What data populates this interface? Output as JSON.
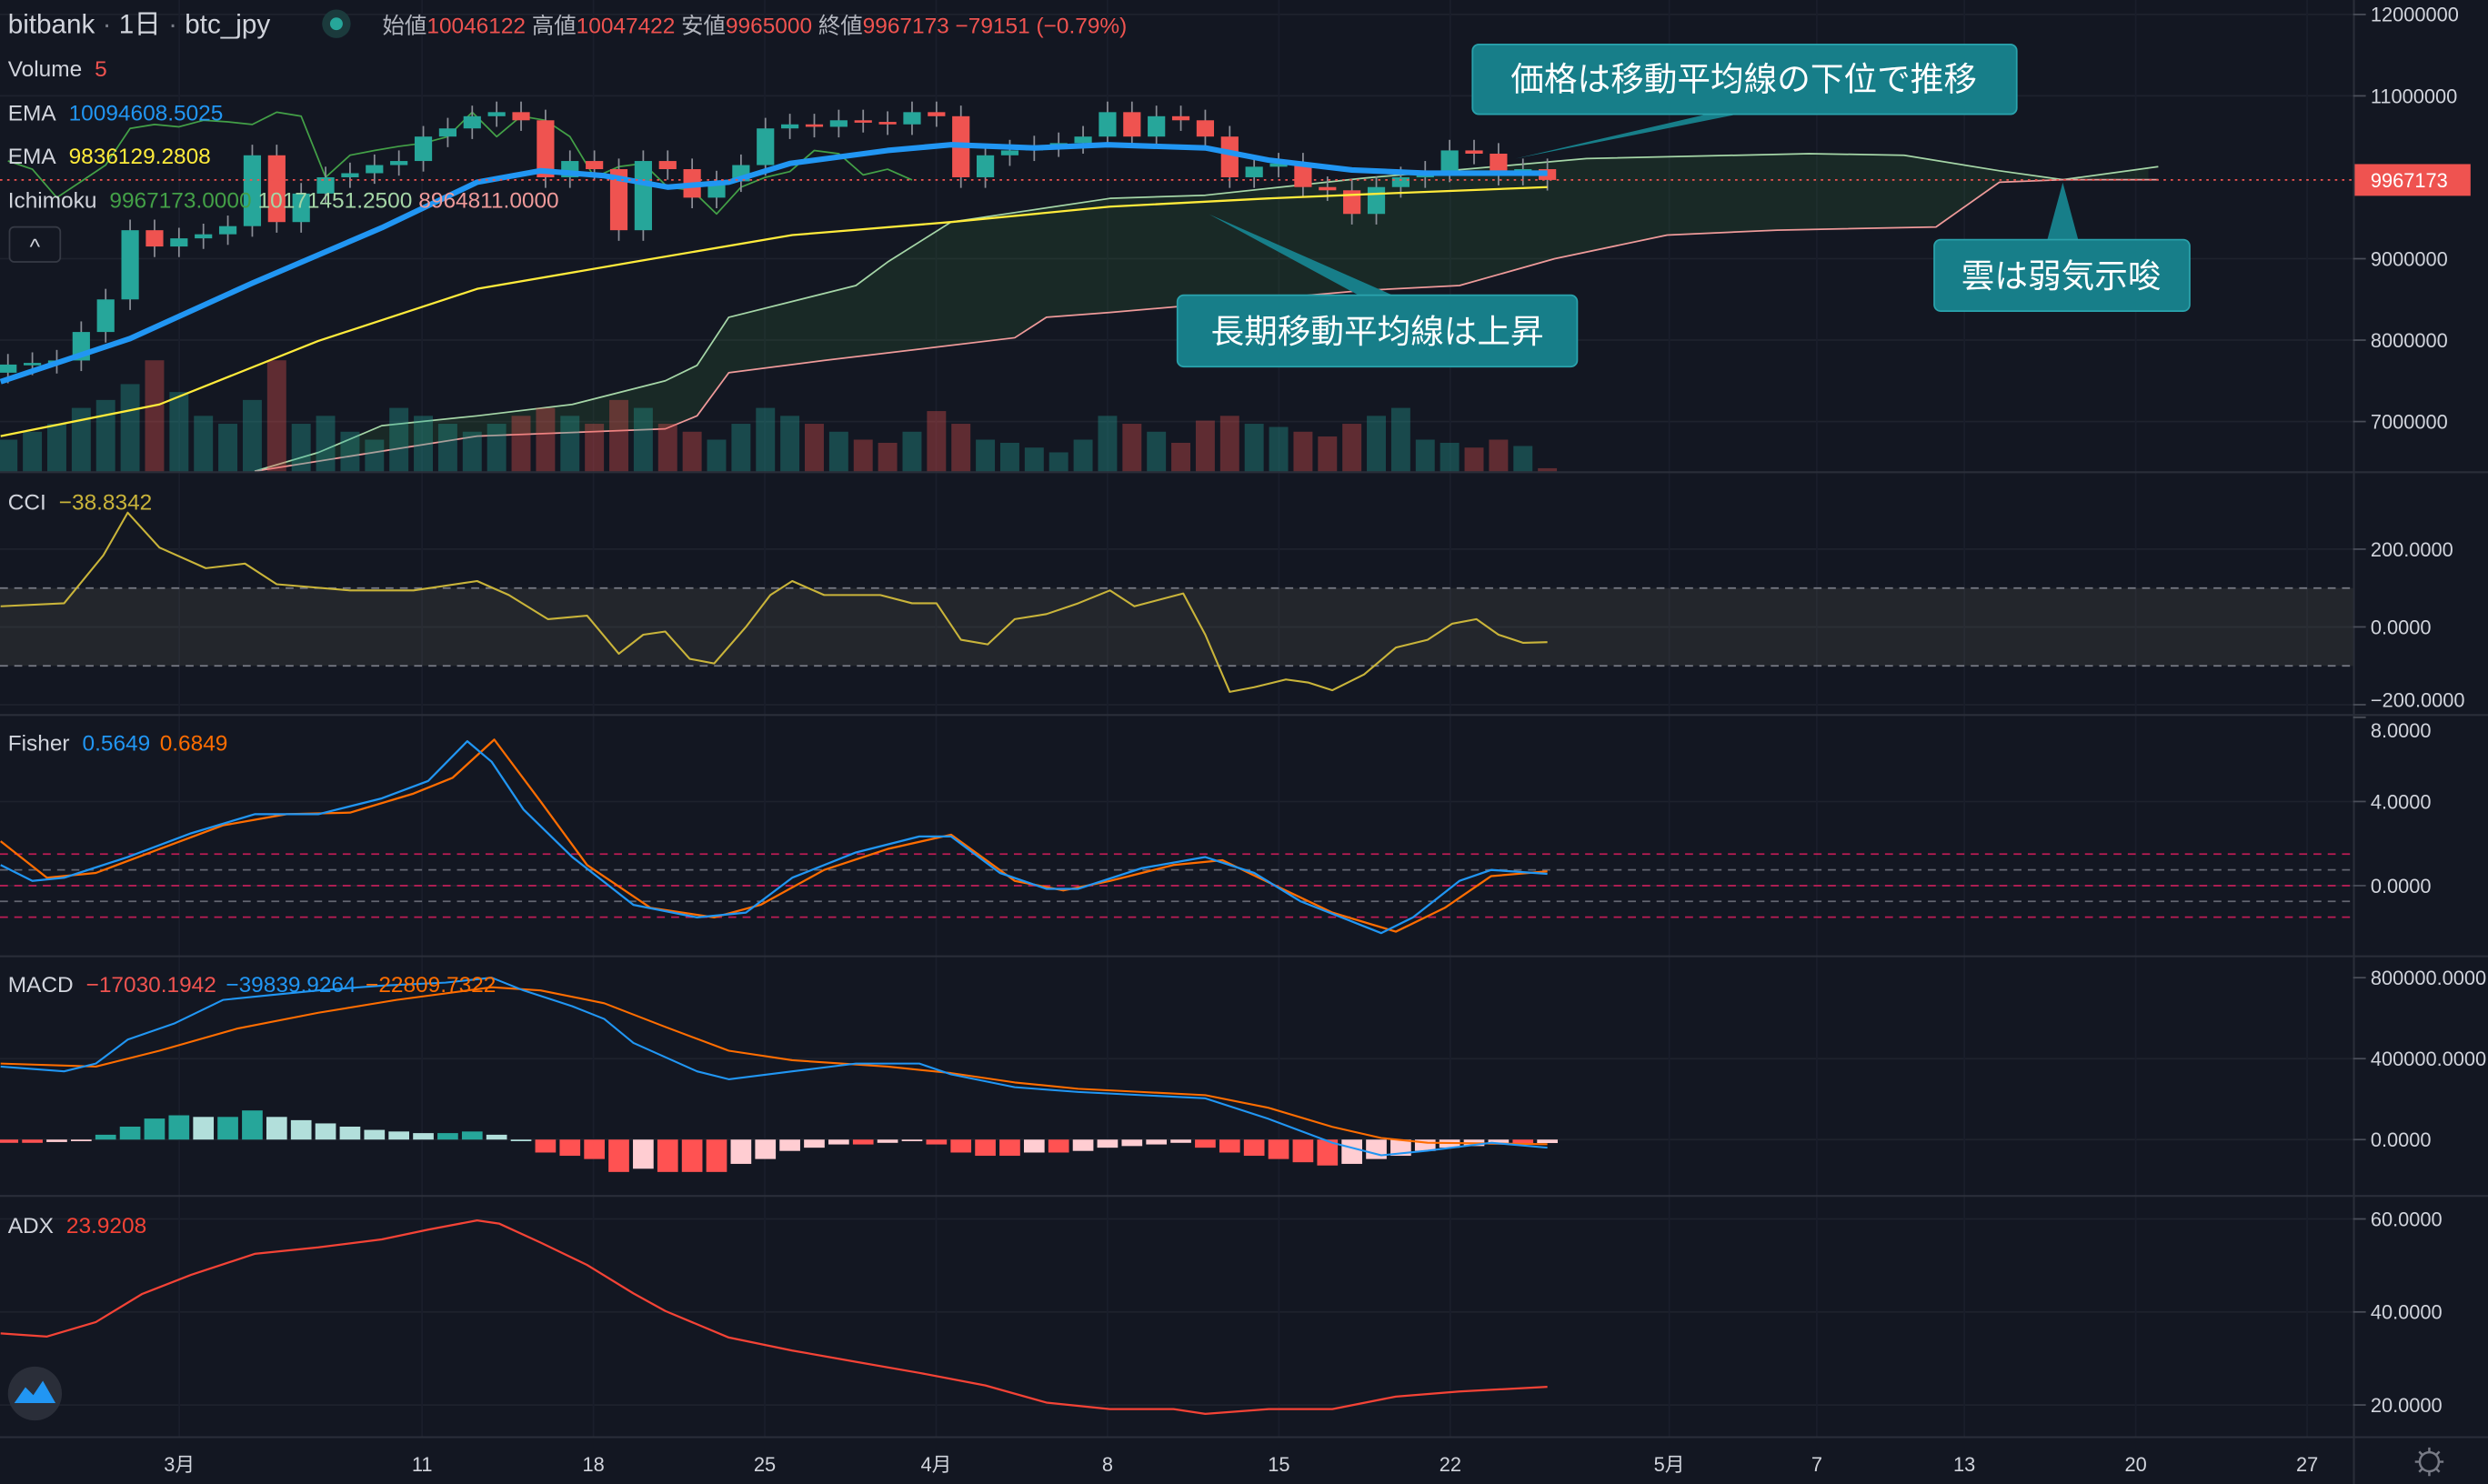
{
  "header": {
    "exchange": "bitbank",
    "interval": "1日",
    "symbol": "btc_jpy",
    "ohlc": [
      {
        "label": "始値",
        "value": "10046122"
      },
      {
        "label": "高値",
        "value": "10047422"
      },
      {
        "label": "安値",
        "value": "9965000"
      },
      {
        "label": "終値",
        "value": "9967173"
      }
    ],
    "change": "−79151 (−0.79%)"
  },
  "legends": {
    "volume": {
      "label": "Volume",
      "value": "5"
    },
    "ema_fast": {
      "label": "EMA",
      "value": "10094608.5025"
    },
    "ema_slow": {
      "label": "EMA",
      "value": "9836129.2808"
    },
    "ichimoku": {
      "label": "Ichimoku",
      "v1": "9967173.0000",
      "v2": "10171451.2500",
      "v3": "8964811.0000"
    },
    "cci": {
      "label": "CCI",
      "value": "−38.8342"
    },
    "fisher": {
      "label": "Fisher",
      "v1": "0.5649",
      "v2": "0.6849"
    },
    "macd": {
      "label": "MACD",
      "v1": "−17030.1942",
      "v2": "−39839.9264",
      "v3": "−22809.7322"
    },
    "adx": {
      "label": "ADX",
      "value": "23.9208"
    }
  },
  "collapse_button": "^",
  "annotations": [
    {
      "text": "価格は移動平均線の下位で推移"
    },
    {
      "text": "長期移動平均線は上昇"
    },
    {
      "text": "雲は弱気示唆"
    }
  ],
  "price_axis": {
    "main": [
      "12000000",
      "11000000",
      "9000000",
      "8000000",
      "7000000"
    ],
    "last_price": "9967173",
    "cci": [
      "200.0000",
      "0.0000",
      "−200.0000"
    ],
    "fisher": [
      "8.0000",
      "4.0000",
      "0.0000"
    ],
    "macd": [
      "800000.0000",
      "400000.0000",
      "0.0000"
    ],
    "adx": [
      "60.0000",
      "40.0000",
      "20.0000"
    ]
  },
  "time_axis": [
    "3月",
    "11",
    "18",
    "25",
    "4月",
    "8",
    "15",
    "22",
    "5月",
    "7",
    "13",
    "20",
    "27"
  ],
  "colors": {
    "background": "#131722",
    "up": "#26a69a",
    "down": "#ef5350",
    "ema_fast": "#2196f3",
    "ema_slow": "#ffeb3b",
    "chikou": "#43a047",
    "span_a": "#a5d6a7",
    "span_b": "#ef9a9a",
    "cci": "#c9b43a",
    "fisher": "#2196f3",
    "fisher_trigger": "#ff6d00",
    "adx": "#f44336",
    "annotation": "#177e89"
  },
  "chart_data": {
    "type": "candlestick",
    "title": "bitbank 1日 btc_jpy",
    "x_unit": "day index (0 = 2/23)",
    "price_unit": "million JPY",
    "ylim": [
      6.4,
      12.0
    ],
    "first_open": 7.6,
    "closes": [
      7.7,
      7.72,
      7.75,
      8.1,
      8.5,
      9.35,
      9.15,
      9.25,
      9.3,
      9.4,
      10.27,
      9.45,
      9.8,
      10.0,
      10.05,
      10.15,
      10.2,
      10.5,
      10.6,
      10.75,
      10.8,
      10.7,
      10.0,
      10.2,
      10.1,
      9.35,
      10.2,
      10.1,
      9.75,
      9.95,
      10.15,
      10.6,
      10.65,
      10.62,
      10.7,
      10.68,
      10.65,
      10.8,
      10.75,
      10.0,
      10.27,
      10.33,
      10.38,
      10.42,
      10.5,
      10.8,
      10.5,
      10.75,
      10.7,
      10.5,
      10.0,
      10.13,
      10.17,
      9.88,
      9.84,
      9.55,
      9.88,
      10.0,
      10.07,
      10.33,
      10.29,
      10.03,
      10.1,
      9.967173
    ],
    "volume": [
      20,
      25,
      30,
      40,
      45,
      55,
      70,
      50,
      35,
      30,
      45,
      70,
      30,
      35,
      25,
      20,
      40,
      35,
      30,
      25,
      30,
      35,
      40,
      35,
      30,
      45,
      40,
      30,
      25,
      20,
      30,
      40,
      35,
      30,
      25,
      20,
      18,
      25,
      38,
      30,
      20,
      18,
      15,
      12,
      20,
      35,
      30,
      25,
      18,
      32,
      35,
      30,
      28,
      25,
      22,
      30,
      35,
      40,
      20,
      18,
      15,
      20,
      16,
      2
    ],
    "ema_fast": [
      [
        -0.3,
        7.49
      ],
      [
        5,
        8.02
      ],
      [
        10,
        8.7
      ],
      [
        15.3,
        9.38
      ],
      [
        19.2,
        9.94
      ],
      [
        21.8,
        10.08
      ],
      [
        24.4,
        10.02
      ],
      [
        27,
        9.88
      ],
      [
        29.5,
        9.94
      ],
      [
        32,
        10.17
      ],
      [
        36,
        10.33
      ],
      [
        38.6,
        10.4
      ],
      [
        42,
        10.36
      ],
      [
        45,
        10.4
      ],
      [
        49,
        10.36
      ],
      [
        51.6,
        10.21
      ],
      [
        55,
        10.09
      ],
      [
        58,
        10.05
      ],
      [
        63,
        10.05
      ]
    ],
    "ema_slow": [
      [
        -0.3,
        6.82
      ],
      [
        6.2,
        7.21
      ],
      [
        12.7,
        7.99
      ],
      [
        19.2,
        8.63
      ],
      [
        25.6,
        8.96
      ],
      [
        32.1,
        9.29
      ],
      [
        38.6,
        9.45
      ],
      [
        45.1,
        9.64
      ],
      [
        51.6,
        9.74
      ],
      [
        56.2,
        9.8
      ],
      [
        63,
        9.88
      ]
    ],
    "chikou_shift": 26,
    "span_a": [
      [
        10.1,
        6.39
      ],
      [
        12.7,
        6.62
      ],
      [
        15.3,
        6.95
      ],
      [
        19.2,
        7.07
      ],
      [
        23.1,
        7.21
      ],
      [
        26.9,
        7.5
      ],
      [
        28.2,
        7.69
      ],
      [
        29.5,
        8.28
      ],
      [
        34.7,
        8.67
      ],
      [
        36,
        8.96
      ],
      [
        38.6,
        9.45
      ],
      [
        45.1,
        9.74
      ],
      [
        49,
        9.78
      ],
      [
        55.5,
        9.99
      ],
      [
        64.6,
        10.23
      ],
      [
        73.7,
        10.29
      ],
      [
        77.6,
        10.27
      ],
      [
        81.5,
        10.08
      ],
      [
        84.1,
        9.97
      ],
      [
        88,
        10.13
      ]
    ],
    "span_b": [
      [
        10.1,
        6.39
      ],
      [
        19.2,
        6.82
      ],
      [
        26.9,
        6.91
      ],
      [
        28.2,
        7.07
      ],
      [
        29.5,
        7.6
      ],
      [
        33.4,
        7.75
      ],
      [
        41.2,
        8.03
      ],
      [
        42.5,
        8.28
      ],
      [
        45.1,
        8.34
      ],
      [
        55.5,
        8.61
      ],
      [
        59.4,
        8.67
      ],
      [
        63.3,
        9.0
      ],
      [
        67.9,
        9.29
      ],
      [
        72.4,
        9.35
      ],
      [
        78.9,
        9.39
      ],
      [
        81.5,
        9.94
      ],
      [
        84.1,
        9.97
      ],
      [
        88,
        9.97
      ]
    ],
    "cci": [
      [
        -0.3,
        53
      ],
      [
        2.3,
        61
      ],
      [
        3.9,
        184
      ],
      [
        4.9,
        294
      ],
      [
        6.2,
        204
      ],
      [
        8.1,
        151
      ],
      [
        9.7,
        163
      ],
      [
        11,
        110
      ],
      [
        14,
        94
      ],
      [
        16.6,
        94
      ],
      [
        19.2,
        118
      ],
      [
        20.5,
        82
      ],
      [
        22.1,
        20
      ],
      [
        23.7,
        29
      ],
      [
        25,
        -69
      ],
      [
        26,
        -20
      ],
      [
        26.9,
        -12
      ],
      [
        27.9,
        -82
      ],
      [
        28.9,
        -94
      ],
      [
        30.2,
        0
      ],
      [
        31.2,
        82
      ],
      [
        32.1,
        118
      ],
      [
        33.4,
        82
      ],
      [
        35.7,
        82
      ],
      [
        37,
        61
      ],
      [
        38,
        61
      ],
      [
        39,
        -33
      ],
      [
        40.1,
        -45
      ],
      [
        41.2,
        20
      ],
      [
        42.5,
        33
      ],
      [
        43.8,
        61
      ],
      [
        45.1,
        94
      ],
      [
        46.1,
        53
      ],
      [
        48.1,
        86
      ],
      [
        49,
        -20
      ],
      [
        50,
        -167
      ],
      [
        51,
        -155
      ],
      [
        52.3,
        -135
      ],
      [
        53.2,
        -143
      ],
      [
        54.2,
        -163
      ],
      [
        55.5,
        -122
      ],
      [
        56.8,
        -53
      ],
      [
        58.1,
        -33
      ],
      [
        59.1,
        8
      ],
      [
        60.1,
        20
      ],
      [
        61,
        -20
      ],
      [
        62,
        -41
      ],
      [
        63,
        -39
      ]
    ],
    "cci_band": [
      -100,
      100
    ],
    "fisher": [
      [
        -0.3,
        0.98
      ],
      [
        1.0,
        0.23
      ],
      [
        2.3,
        0.38
      ],
      [
        4.9,
        1.36
      ],
      [
        7.5,
        2.49
      ],
      [
        10.1,
        3.4
      ],
      [
        12.7,
        3.4
      ],
      [
        15.3,
        4.15
      ],
      [
        17.2,
        4.98
      ],
      [
        18.8,
        6.87
      ],
      [
        19.8,
        5.89
      ],
      [
        21.1,
        3.62
      ],
      [
        23.1,
        1.36
      ],
      [
        25.6,
        -0.91
      ],
      [
        28.2,
        -1.51
      ],
      [
        30.2,
        -1.28
      ],
      [
        32.1,
        0.38
      ],
      [
        34.7,
        1.58
      ],
      [
        37.3,
        2.34
      ],
      [
        38.6,
        2.34
      ],
      [
        40.6,
        0.6
      ],
      [
        42.5,
        -0.15
      ],
      [
        43.8,
        -0.15
      ],
      [
        46.4,
        0.83
      ],
      [
        49,
        1.36
      ],
      [
        51,
        0.6
      ],
      [
        52.9,
        -0.75
      ],
      [
        54.9,
        -1.66
      ],
      [
        56.2,
        -2.26
      ],
      [
        57.5,
        -1.51
      ],
      [
        59.4,
        0.23
      ],
      [
        60.7,
        0.75
      ],
      [
        63,
        0.56
      ]
    ],
    "fisher_trigger": [
      [
        -0.3,
        2.11
      ],
      [
        1.6,
        0.38
      ],
      [
        3.6,
        0.6
      ],
      [
        6.2,
        1.74
      ],
      [
        8.8,
        2.87
      ],
      [
        11.4,
        3.4
      ],
      [
        14,
        3.47
      ],
      [
        16.6,
        4.38
      ],
      [
        18.2,
        5.13
      ],
      [
        19.9,
        6.94
      ],
      [
        21.8,
        4.0
      ],
      [
        23.7,
        0.98
      ],
      [
        26.3,
        -1.06
      ],
      [
        28.9,
        -1.51
      ],
      [
        30.8,
        -0.91
      ],
      [
        33.4,
        0.75
      ],
      [
        36,
        1.74
      ],
      [
        38.6,
        2.42
      ],
      [
        41.2,
        0.23
      ],
      [
        43.2,
        -0.23
      ],
      [
        45.1,
        0.23
      ],
      [
        47.7,
        0.98
      ],
      [
        49.7,
        1.21
      ],
      [
        51.6,
        0.15
      ],
      [
        54.2,
        -1.28
      ],
      [
        56.8,
        -2.19
      ],
      [
        58.8,
        -1.06
      ],
      [
        60.7,
        0.45
      ],
      [
        63,
        0.68
      ]
    ],
    "fisher_levels": [
      1.5,
      0.75,
      0,
      -0.75,
      -1.5
    ],
    "macd_unit": "thousand JPY",
    "macd": [
      [
        -0.3,
        361
      ],
      [
        2.3,
        337
      ],
      [
        3.6,
        376
      ],
      [
        4.9,
        494
      ],
      [
        6.8,
        573
      ],
      [
        8.8,
        690
      ],
      [
        10.7,
        714
      ],
      [
        12.7,
        737
      ],
      [
        15.3,
        761
      ],
      [
        17.9,
        776
      ],
      [
        19.8,
        800
      ],
      [
        21.1,
        737
      ],
      [
        23.1,
        659
      ],
      [
        24.4,
        596
      ],
      [
        25.6,
        478
      ],
      [
        28.2,
        337
      ],
      [
        29.5,
        298
      ],
      [
        32.1,
        337
      ],
      [
        34.7,
        376
      ],
      [
        37.3,
        376
      ],
      [
        38.6,
        322
      ],
      [
        41.2,
        259
      ],
      [
        43.8,
        235
      ],
      [
        46.4,
        220
      ],
      [
        49,
        204
      ],
      [
        51.6,
        102
      ],
      [
        54.2,
        -16
      ],
      [
        56.2,
        -78
      ],
      [
        58.1,
        -55
      ],
      [
        60.7,
        -16
      ],
      [
        63,
        -40
      ]
    ],
    "macd_signal": [
      [
        -0.3,
        376
      ],
      [
        3.6,
        361
      ],
      [
        6.2,
        439
      ],
      [
        9.4,
        549
      ],
      [
        12.7,
        627
      ],
      [
        15.9,
        690
      ],
      [
        19.8,
        753
      ],
      [
        21.8,
        737
      ],
      [
        24.4,
        674
      ],
      [
        26.9,
        557
      ],
      [
        29.5,
        439
      ],
      [
        32.1,
        392
      ],
      [
        36,
        361
      ],
      [
        38.6,
        329
      ],
      [
        41.2,
        282
      ],
      [
        43.8,
        251
      ],
      [
        46.4,
        235
      ],
      [
        49,
        220
      ],
      [
        51.6,
        157
      ],
      [
        54.2,
        63
      ],
      [
        56.2,
        8
      ],
      [
        58.1,
        -16
      ],
      [
        63,
        -23
      ]
    ],
    "macd_histogram": [
      -16,
      -16,
      -12,
      -8,
      24,
      64,
      104,
      120,
      112,
      112,
      144,
      112,
      96,
      80,
      64,
      48,
      40,
      32,
      32,
      40,
      24,
      0,
      -64,
      -80,
      -96,
      -160,
      -144,
      -160,
      -160,
      -160,
      -120,
      -96,
      -56,
      -40,
      -24,
      -24,
      -16,
      -8,
      -24,
      -64,
      -80,
      -80,
      -64,
      -64,
      -56,
      -40,
      -32,
      -24,
      -16,
      -40,
      -64,
      -80,
      -96,
      -112,
      -128,
      -120,
      -96,
      -80,
      -56,
      -40,
      -32,
      -24,
      -24,
      -17
    ],
    "adx": [
      [
        -0.3,
        35.4
      ],
      [
        1.6,
        34.7
      ],
      [
        3.6,
        37.8
      ],
      [
        5.5,
        43.9
      ],
      [
        7.5,
        48.0
      ],
      [
        10.1,
        52.5
      ],
      [
        12.7,
        53.9
      ],
      [
        15.3,
        55.6
      ],
      [
        17.2,
        57.7
      ],
      [
        19.2,
        59.7
      ],
      [
        20.1,
        59.0
      ],
      [
        21.8,
        54.9
      ],
      [
        23.7,
        50.1
      ],
      [
        25.6,
        44.0
      ],
      [
        26.9,
        40.2
      ],
      [
        29.5,
        34.5
      ],
      [
        32.1,
        31.7
      ],
      [
        34.7,
        29.3
      ],
      [
        37.3,
        26.9
      ],
      [
        40,
        24.2
      ],
      [
        42.5,
        20.5
      ],
      [
        45.1,
        19.1
      ],
      [
        47.7,
        19.1
      ],
      [
        49,
        18.1
      ],
      [
        51.6,
        19.1
      ],
      [
        54.2,
        19.1
      ],
      [
        56.8,
        21.8
      ],
      [
        59.4,
        22.9
      ],
      [
        63,
        23.9
      ]
    ]
  }
}
